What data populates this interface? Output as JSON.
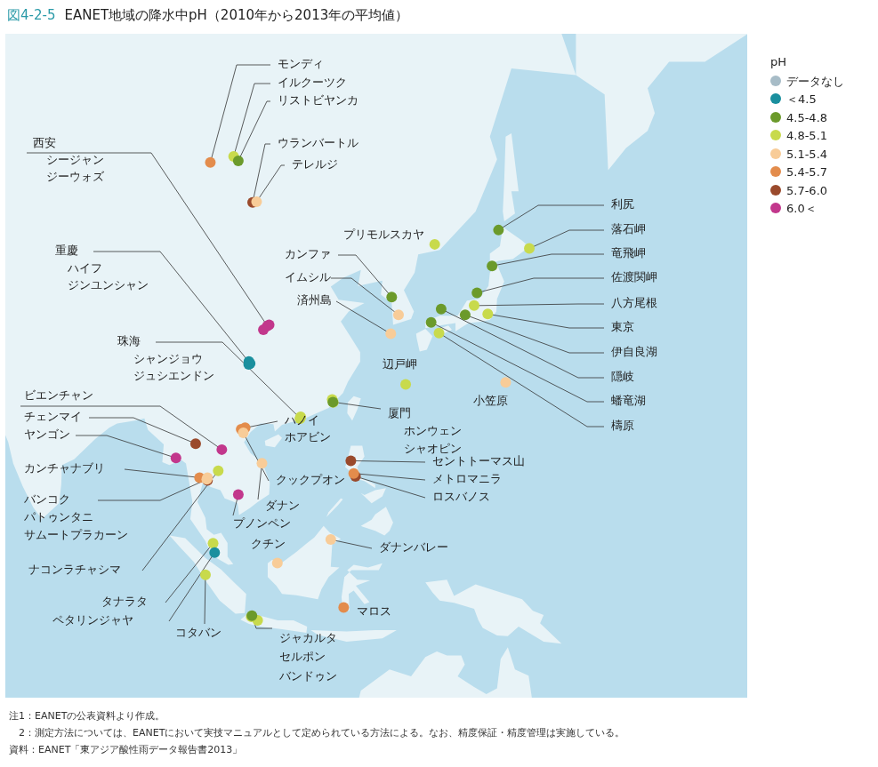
{
  "chart_data": {
    "type": "scatter",
    "figure_number": "図4-2-5",
    "title": "EANET地域の降水中pH（2010年から2013年の平均値）",
    "legend_title": "pH",
    "legend": "right",
    "grid": false,
    "tick_labels": false,
    "marker": "circle",
    "xlim": [
      72.4,
      175.9
    ],
    "ylim": [
      -18,
      62
    ],
    "series": [
      {
        "name": "データなし",
        "color": "#a7bcc7",
        "labels": [],
        "x": [],
        "y": []
      },
      {
        "name": "＜4.5",
        "color": "#1a8f9e",
        "labels": [
          "重慶",
          "ハイフ",
          "ジンユンシャン",
          "ペタリンジャヤ"
        ],
        "x": [
          106.55,
          106.35,
          106.38,
          101.6
        ],
        "y": [
          29.56,
          29.45,
          29.83,
          3.1
        ]
      },
      {
        "name": "4.5-4.8",
        "color": "#6b9a2b",
        "labels": [
          "リストビヤンカ",
          "利尻",
          "竜飛岬",
          "佐渡関岬",
          "伊自良湖",
          "隠岐",
          "蟠竜湖",
          "カンファ",
          "厦門",
          "ジャカルタ"
        ],
        "x": [
          104.9,
          141.2,
          140.3,
          138.2,
          136.55,
          133.2,
          131.8,
          126.3,
          118.1,
          106.8
        ],
        "y": [
          51.85,
          45.1,
          41.25,
          38.2,
          35.6,
          36.3,
          34.7,
          37.7,
          24.5,
          -6.2
        ]
      },
      {
        "name": "4.8-5.1",
        "color": "#c8da4c",
        "labels": [
          "イルクーツク",
          "プリモルスカヤ",
          "落石岬",
          "八方尾根",
          "東京",
          "檮原",
          "辺戸岬",
          "珠海",
          "シャンジョウ",
          "ジュシエンドン",
          "ホンウェン",
          "シャオピン",
          "ナコンラチャシマ",
          "タナラタ",
          "コタバン",
          "セルポン",
          "バンドゥン"
        ],
        "x": [
          104.25,
          132.3,
          145.5,
          137.8,
          139.7,
          132.9,
          128.25,
          113.55,
          113.5,
          113.6,
          118.15,
          118.0,
          102.1,
          101.38,
          100.32,
          106.7,
          107.6
        ],
        "y": [
          52.25,
          43.6,
          43.15,
          36.7,
          35.7,
          33.4,
          26.85,
          22.3,
          22.25,
          22.5,
          24.45,
          24.85,
          14.97,
          4.47,
          -0.2,
          -6.35,
          -6.9
        ]
      },
      {
        "name": "5.1-5.4",
        "color": "#f8cc98",
        "labels": [
          "テレルジ",
          "イムシル",
          "済州島",
          "小笠原",
          "バンコク",
          "パトゥンタニ",
          "クックプオン",
          "ダナン",
          "クチン",
          "ダナンバレー"
        ],
        "x": [
          107.45,
          127.25,
          126.17,
          142.2,
          100.5,
          100.6,
          105.6,
          108.2,
          110.35,
          117.8
        ],
        "y": [
          47.98,
          35.6,
          33.3,
          27.1,
          13.75,
          14.0,
          20.3,
          16.05,
          1.55,
          5.0
        ]
      },
      {
        "name": "5.4-5.7",
        "color": "#e38c4c",
        "labels": [
          "モンディ",
          "カンチャナブリ",
          "ハノイ",
          "ホアビン",
          "メトロマニラ",
          "マロス"
        ],
        "x": [
          101.0,
          99.5,
          105.85,
          105.3,
          121.0,
          119.6
        ],
        "y": [
          51.7,
          14.0,
          21.0,
          20.8,
          14.6,
          -5.0
        ]
      },
      {
        "name": "5.7-6.0",
        "color": "#9a4a2c",
        "labels": [
          "ウランバートル",
          "チェンマイ",
          "サムートプラカーン",
          "セントトーマス山",
          "ロスバノス"
        ],
        "x": [
          106.9,
          98.95,
          100.6,
          120.6,
          121.25
        ],
        "y": [
          47.9,
          18.8,
          13.6,
          16.4,
          14.17
        ]
      },
      {
        "name": "6.0＜",
        "color": "#c2378c",
        "labels": [
          "西安",
          "シージャン",
          "ジーウォズ",
          "ビエンチャン",
          "ヤンゴン",
          "プノンペン"
        ],
        "x": [
          108.95,
          109.2,
          108.4,
          102.6,
          96.2,
          104.9
        ],
        "y": [
          34.27,
          34.4,
          33.8,
          17.97,
          16.8,
          11.55
        ]
      }
    ],
    "notes": [
      "注1：EANETの公表資料より作成。",
      "　2：測定方法については、EANETにおいて実技マニュアルとして定められている方法による。なお、精度保証・精度管理は実施している。"
    ],
    "source": "資料：EANET「東アジア酸性雨データ報告書2013」"
  }
}
